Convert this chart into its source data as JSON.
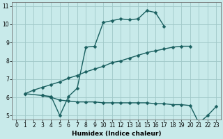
{
  "xlabel": "Humidex (Indice chaleur)",
  "bg_color": "#c8eaea",
  "grid_color": "#a0c8c8",
  "line_color": "#1a6060",
  "xlim": [
    -0.5,
    23.5
  ],
  "ylim": [
    4.8,
    11.2
  ],
  "xticks": [
    0,
    1,
    2,
    3,
    4,
    5,
    6,
    7,
    8,
    9,
    10,
    11,
    12,
    13,
    14,
    15,
    16,
    17,
    18,
    19,
    20,
    21,
    22,
    23
  ],
  "yticks": [
    5,
    6,
    7,
    8,
    9,
    10,
    11
  ],
  "line1_x": [
    1,
    2,
    3,
    4,
    5,
    6,
    7,
    8,
    9,
    10,
    11,
    12,
    13,
    14,
    15,
    16,
    17,
    18,
    19,
    20
  ],
  "line1_y": [
    6.2,
    6.4,
    6.55,
    6.7,
    6.85,
    7.05,
    7.2,
    7.4,
    7.55,
    7.7,
    7.9,
    8.0,
    8.15,
    8.3,
    8.45,
    8.55,
    8.65,
    8.75,
    8.8,
    8.8
  ],
  "line2_x": [
    1,
    3,
    4,
    5,
    6,
    7,
    8,
    9,
    10,
    11,
    12,
    13,
    14,
    15,
    16,
    17
  ],
  "line2_y": [
    6.2,
    6.1,
    6.05,
    5.0,
    6.05,
    6.5,
    8.75,
    8.8,
    10.1,
    10.2,
    10.3,
    10.25,
    10.3,
    10.75,
    10.65,
    9.9
  ],
  "line3_x": [
    3,
    4,
    5,
    6,
    7,
    8,
    9,
    10,
    11,
    12,
    13,
    14,
    15,
    16,
    17,
    18,
    19,
    20,
    21,
    22,
    23
  ],
  "line3_y": [
    6.1,
    6.0,
    5.85,
    5.8,
    5.75,
    5.75,
    5.75,
    5.7,
    5.7,
    5.7,
    5.7,
    5.7,
    5.7,
    5.65,
    5.65,
    5.6,
    5.6,
    5.55,
    4.6,
    5.0,
    5.5
  ],
  "markersize": 2.5,
  "linewidth": 1.0,
  "tick_fontsize": 5.5,
  "label_fontsize": 6.5
}
